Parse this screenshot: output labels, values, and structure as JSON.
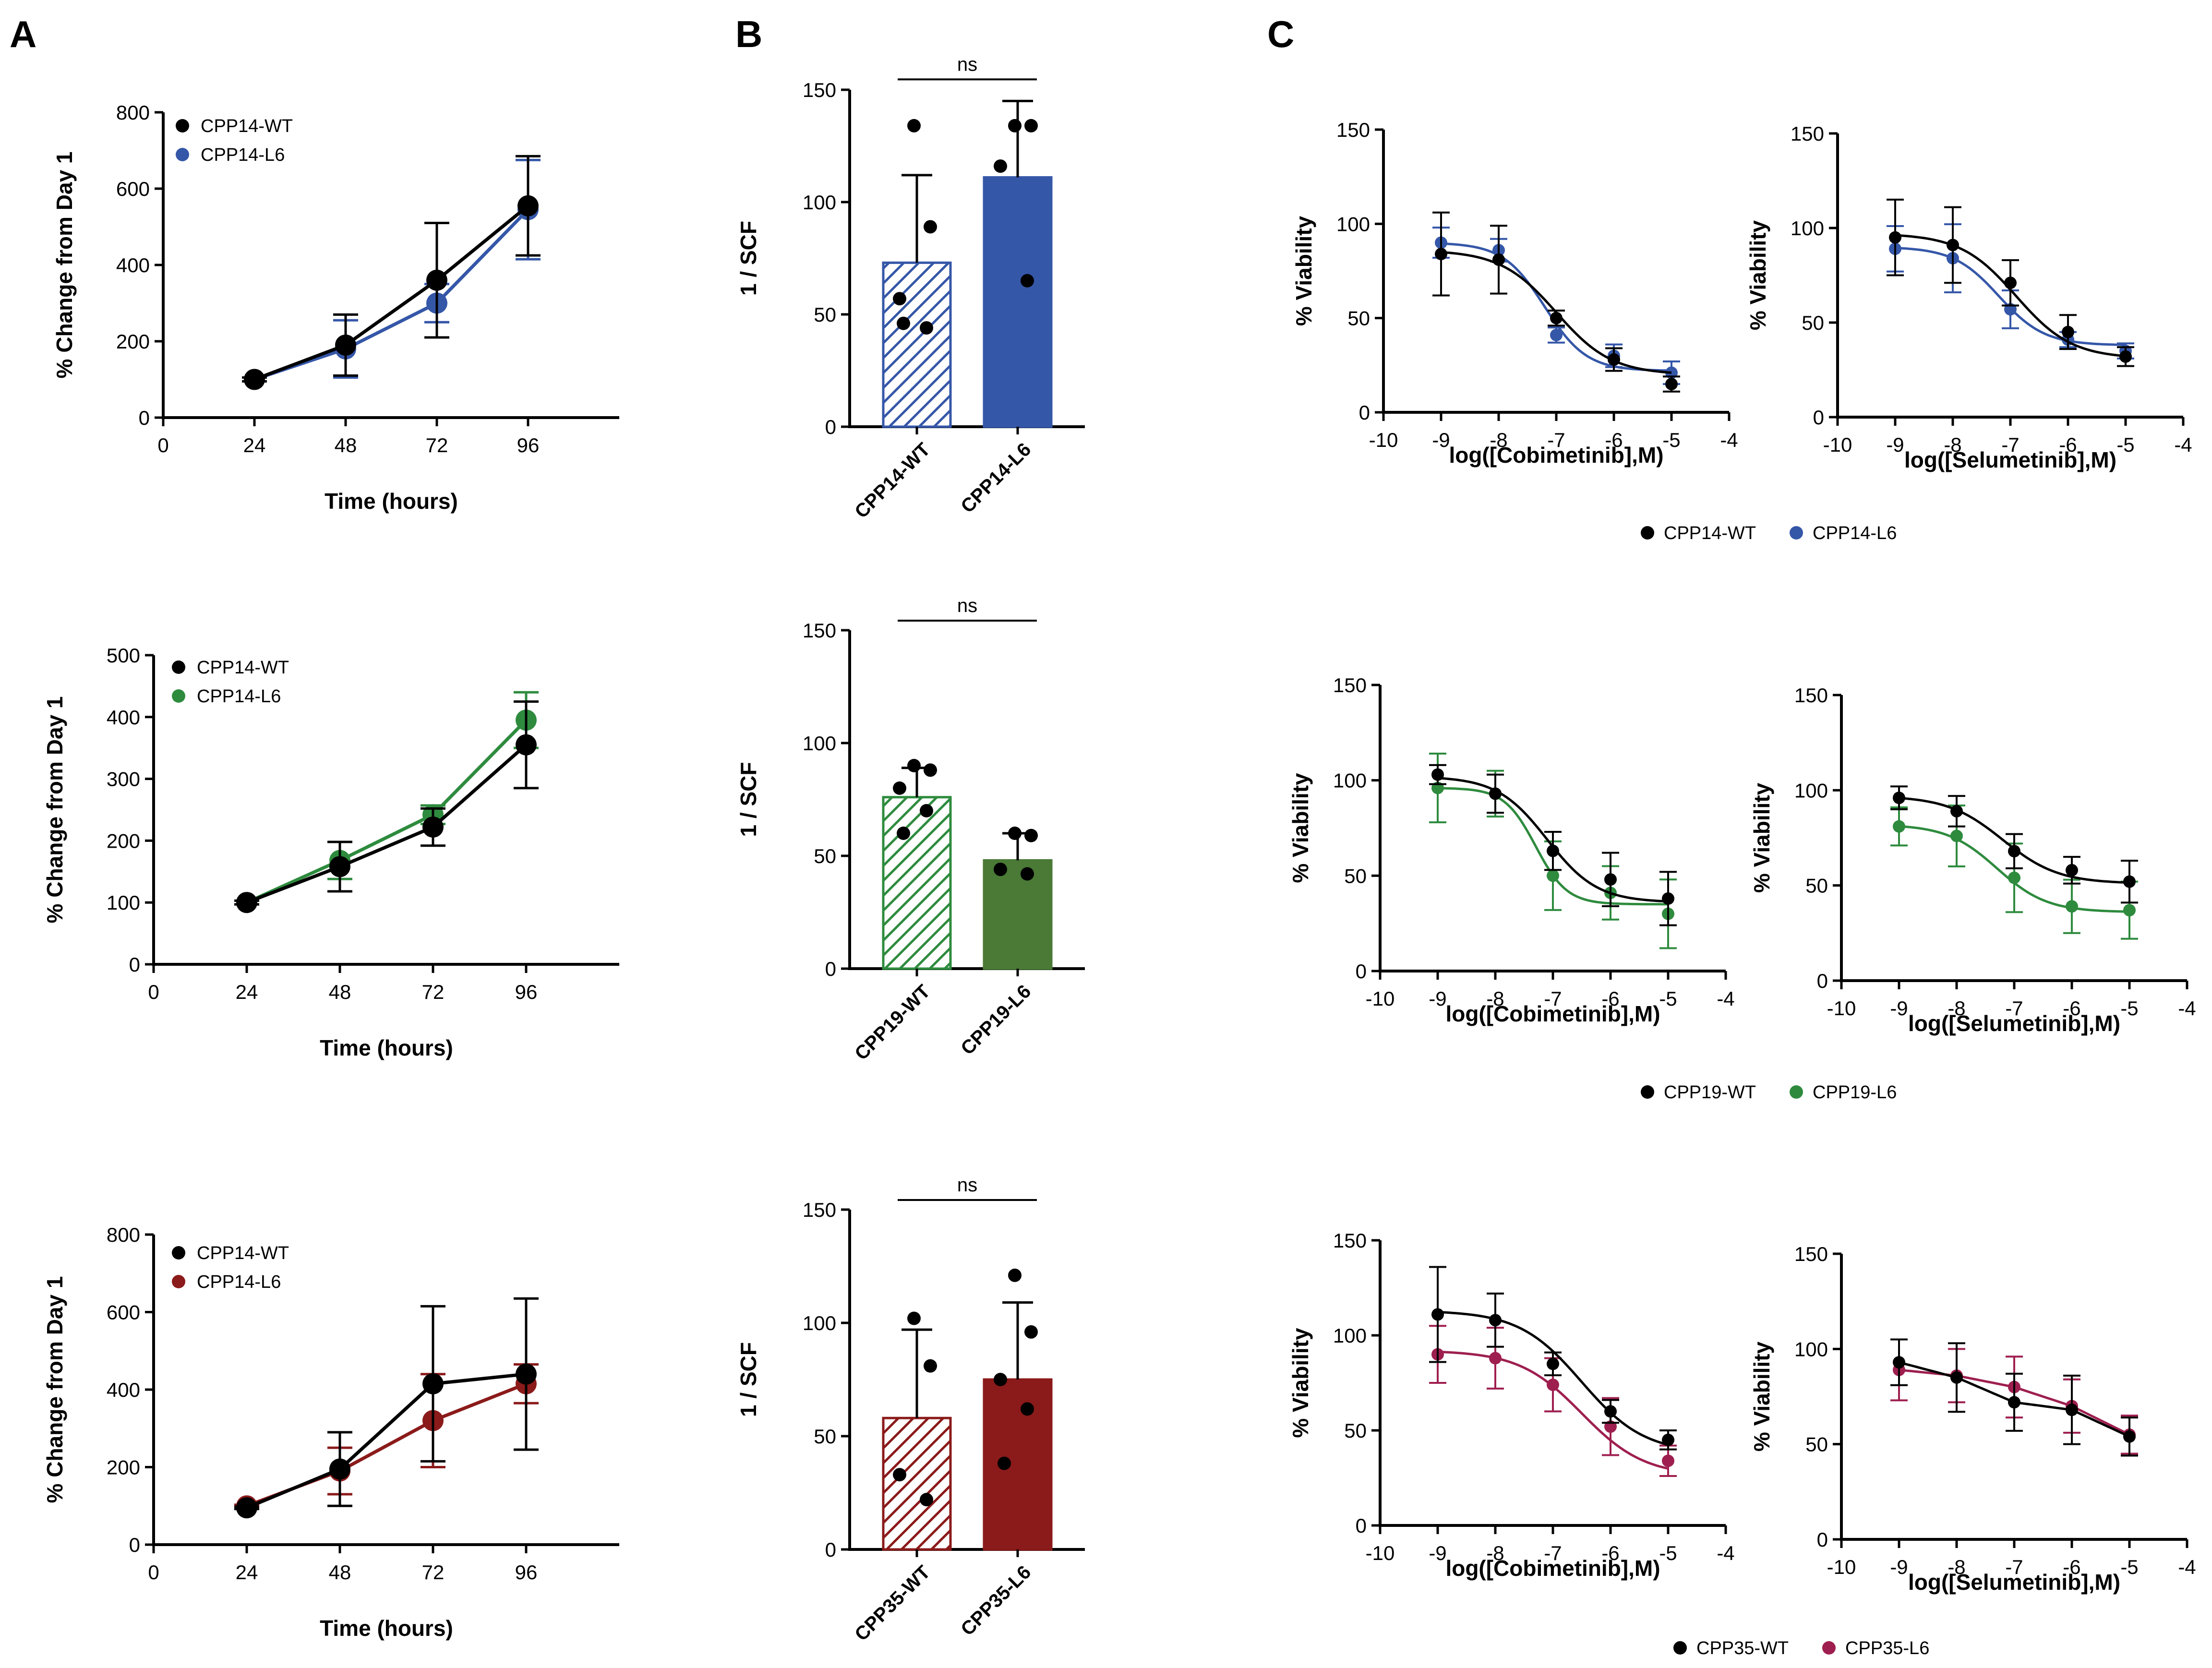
{
  "panel_labels": [
    "A",
    "B",
    "C"
  ],
  "colors": {
    "wt": "#000000",
    "blue": "#3557A8",
    "green": "#2E8B3E",
    "green_bar": "#4A7A36",
    "red": "#8B1A1A",
    "magenta": "#9E1F4F"
  },
  "chart_data": [
    {
      "id": "A1",
      "type": "line",
      "color": "blue",
      "xlabel": "Time (hours)",
      "ylabel": "% Change from Day 1",
      "xlim": [
        0,
        120
      ],
      "ylim": [
        0,
        800
      ],
      "xticks": [
        0,
        24,
        48,
        72,
        96
      ],
      "yticks": [
        0,
        200,
        400,
        600,
        800
      ],
      "legend": [
        "CPP14-WT",
        "CPP14-L6"
      ],
      "series": [
        {
          "name": "CPP14-WT",
          "x": [
            24,
            48,
            72,
            96
          ],
          "y": [
            100,
            190,
            360,
            555
          ],
          "err": [
            5,
            80,
            150,
            130
          ]
        },
        {
          "name": "CPP14-L6",
          "x": [
            24,
            48,
            72,
            96
          ],
          "y": [
            100,
            180,
            300,
            545
          ],
          "err": [
            5,
            75,
            50,
            130
          ]
        }
      ]
    },
    {
      "id": "A2",
      "type": "line",
      "color": "green",
      "xlabel": "Time (hours)",
      "ylabel": "% Change from Day 1",
      "xlim": [
        0,
        120
      ],
      "ylim": [
        0,
        500
      ],
      "xticks": [
        0,
        24,
        48,
        72,
        96
      ],
      "yticks": [
        0,
        100,
        200,
        300,
        400,
        500
      ],
      "legend": [
        "CPP14-WT",
        "CPP14-L6"
      ],
      "series": [
        {
          "name": "CPP14-WT",
          "x": [
            24,
            48,
            72,
            96
          ],
          "y": [
            100,
            158,
            222,
            355
          ],
          "err": [
            3,
            40,
            30,
            70
          ]
        },
        {
          "name": "CPP14-L6",
          "x": [
            24,
            48,
            72,
            96
          ],
          "y": [
            100,
            168,
            242,
            395
          ],
          "err": [
            3,
            30,
            15,
            45
          ]
        }
      ]
    },
    {
      "id": "A3",
      "type": "line",
      "color": "red",
      "xlabel": "Time (hours)",
      "ylabel": "% Change from Day 1",
      "xlim": [
        0,
        120
      ],
      "ylim": [
        0,
        800
      ],
      "xticks": [
        0,
        24,
        48,
        72,
        96
      ],
      "yticks": [
        0,
        200,
        400,
        600,
        800
      ],
      "legend": [
        "CPP14-WT",
        "CPP14-L6"
      ],
      "series": [
        {
          "name": "CPP14-WT",
          "x": [
            24,
            48,
            72,
            96
          ],
          "y": [
            95,
            195,
            415,
            440
          ],
          "err": [
            3,
            95,
            200,
            195
          ]
        },
        {
          "name": "CPP14-L6",
          "x": [
            24,
            48,
            72,
            96
          ],
          "y": [
            100,
            190,
            320,
            415
          ],
          "err": [
            3,
            60,
            120,
            50
          ]
        }
      ]
    },
    {
      "id": "B1",
      "type": "bar",
      "color": "blue",
      "ylabel": "1 / SCF",
      "ylim": [
        0,
        150
      ],
      "yticks": [
        0,
        50,
        100,
        150
      ],
      "significance": "ns",
      "bars": [
        {
          "name": "CPP14-WT",
          "value": 73,
          "err": 39,
          "points": [
            134,
            89,
            57,
            44,
            46
          ],
          "hatched": true
        },
        {
          "name": "CPP14-L6",
          "value": 111,
          "err": 34,
          "points": [
            134,
            134,
            116,
            65
          ],
          "hatched": false
        }
      ]
    },
    {
      "id": "B2",
      "type": "bar",
      "color": "green",
      "ylabel": "1 / SCF",
      "ylim": [
        0,
        150
      ],
      "yticks": [
        0,
        50,
        100,
        150
      ],
      "significance": "ns",
      "bars": [
        {
          "name": "CPP19-WT",
          "value": 76,
          "err": 13,
          "points": [
            90,
            88,
            80,
            70,
            60
          ],
          "hatched": true
        },
        {
          "name": "CPP19-L6",
          "value": 48,
          "err": 12,
          "points": [
            60,
            59,
            44,
            42
          ],
          "hatched": false
        }
      ]
    },
    {
      "id": "B3",
      "type": "bar",
      "color": "red",
      "ylabel": "1 / SCF",
      "ylim": [
        0,
        150
      ],
      "yticks": [
        0,
        50,
        100,
        150
      ],
      "significance": "ns",
      "bars": [
        {
          "name": "CPP35-WT",
          "value": 58,
          "err": 39,
          "points": [
            102,
            81,
            33,
            22
          ],
          "hatched": true
        },
        {
          "name": "CPP35-L6",
          "value": 75,
          "err": 34,
          "points": [
            121,
            96,
            75,
            62,
            38
          ],
          "hatched": false
        }
      ]
    },
    {
      "id": "C1a",
      "type": "line",
      "color": "blue",
      "xlabel": "log([Cobimetinib],M)",
      "ylabel": "% Viability",
      "xlim": [
        -10,
        -4
      ],
      "ylim": [
        0,
        150
      ],
      "xticks": [
        -10,
        -9,
        -8,
        -7,
        -6,
        -5,
        -4
      ],
      "yticks": [
        0,
        50,
        100,
        150
      ],
      "series": [
        {
          "name": "CPP14-WT",
          "x": [
            -9,
            -8,
            -7,
            -6,
            -5
          ],
          "y": [
            84,
            81,
            50,
            28,
            15
          ],
          "err": [
            22,
            18,
            4,
            6,
            4
          ],
          "fit": {
            "top": 86,
            "bottom": 20,
            "ic50": -7.0,
            "hill": 0.9
          }
        },
        {
          "name": "CPP14-L6",
          "x": [
            -9,
            -8,
            -7,
            -6,
            -5
          ],
          "y": [
            90,
            86,
            41,
            30,
            21
          ],
          "err": [
            8,
            6,
            4,
            6,
            6
          ],
          "fit": {
            "top": 90,
            "bottom": 22,
            "ic50": -7.2,
            "hill": 1.2
          }
        }
      ]
    },
    {
      "id": "C1b",
      "type": "line",
      "color": "blue",
      "xlabel": "log([Selumetinib],M)",
      "ylabel": "% Viability",
      "xlim": [
        -10,
        -4
      ],
      "ylim": [
        0,
        150
      ],
      "xticks": [
        -10,
        -9,
        -8,
        -7,
        -6,
        -5,
        -4
      ],
      "yticks": [
        0,
        50,
        100,
        150
      ],
      "series": [
        {
          "name": "CPP14-WT",
          "x": [
            -9,
            -8,
            -7,
            -6,
            -5
          ],
          "y": [
            95,
            91,
            71,
            45,
            32
          ],
          "err": [
            20,
            20,
            12,
            9,
            5
          ],
          "fit": {
            "top": 97,
            "bottom": 31,
            "ic50": -6.9,
            "hill": 0.9
          }
        },
        {
          "name": "CPP14-L6",
          "x": [
            -9,
            -8,
            -7,
            -6,
            -5
          ],
          "y": [
            89,
            84,
            57,
            41,
            35
          ],
          "err": [
            12,
            18,
            10,
            4,
            4
          ],
          "fit": {
            "top": 90,
            "bottom": 38,
            "ic50": -7.2,
            "hill": 1.1
          }
        }
      ]
    },
    {
      "id": "C2a",
      "type": "line",
      "color": "green",
      "xlabel": "log([Cobimetinib],M)",
      "ylabel": "% Viability",
      "xlim": [
        -10,
        -4
      ],
      "ylim": [
        0,
        150
      ],
      "xticks": [
        -10,
        -9,
        -8,
        -7,
        -6,
        -5,
        -4
      ],
      "yticks": [
        0,
        50,
        100,
        150
      ],
      "series": [
        {
          "name": "CPP19-WT",
          "x": [
            -9,
            -8,
            -7,
            -6,
            -5
          ],
          "y": [
            103,
            93,
            63,
            48,
            38
          ],
          "err": [
            5,
            10,
            10,
            14,
            14
          ],
          "fit": {
            "top": 102,
            "bottom": 36,
            "ic50": -7.1,
            "hill": 1.0
          }
        },
        {
          "name": "CPP19-L6",
          "x": [
            -9,
            -8,
            -7,
            -6,
            -5
          ],
          "y": [
            96,
            93,
            50,
            41,
            30
          ],
          "err": [
            18,
            12,
            18,
            14,
            18
          ],
          "fit": {
            "top": 96,
            "bottom": 35,
            "ic50": -7.3,
            "hill": 1.6
          }
        }
      ]
    },
    {
      "id": "C2b",
      "type": "line",
      "color": "green",
      "xlabel": "log([Selumetinib],M)",
      "ylabel": "% Viability",
      "xlim": [
        -10,
        -4
      ],
      "ylim": [
        0,
        150
      ],
      "xticks": [
        -10,
        -9,
        -8,
        -7,
        -6,
        -5,
        -4
      ],
      "yticks": [
        0,
        50,
        100,
        150
      ],
      "series": [
        {
          "name": "CPP19-WT",
          "x": [
            -9,
            -8,
            -7,
            -6,
            -5
          ],
          "y": [
            96,
            89,
            68,
            58,
            52
          ],
          "err": [
            6,
            8,
            9,
            7,
            11
          ],
          "fit": {
            "top": 97,
            "bottom": 51,
            "ic50": -7.2,
            "hill": 0.9
          }
        },
        {
          "name": "CPP19-L6",
          "x": [
            -9,
            -8,
            -7,
            -6,
            -5
          ],
          "y": [
            81,
            76,
            54,
            39,
            37
          ],
          "err": [
            10,
            16,
            18,
            14,
            15
          ],
          "fit": {
            "top": 82,
            "bottom": 36,
            "ic50": -7.3,
            "hill": 1.0
          }
        }
      ]
    },
    {
      "id": "C3a",
      "type": "line",
      "color": "magenta",
      "xlabel": "log([Cobimetinib],M)",
      "ylabel": "% Viability",
      "xlim": [
        -10,
        -4
      ],
      "ylim": [
        0,
        150
      ],
      "xticks": [
        -10,
        -9,
        -8,
        -7,
        -6,
        -5,
        -4
      ],
      "yticks": [
        0,
        50,
        100,
        150
      ],
      "series": [
        {
          "name": "CPP35-WT",
          "x": [
            -9,
            -8,
            -7,
            -6,
            -5
          ],
          "y": [
            111,
            108,
            85,
            60,
            45
          ],
          "err": [
            25,
            14,
            6,
            6,
            5
          ],
          "fit": {
            "top": 113,
            "bottom": 38,
            "ic50": -6.5,
            "hill": 0.8
          }
        },
        {
          "name": "CPP35-L6",
          "x": [
            -9,
            -8,
            -7,
            -6,
            -5
          ],
          "y": [
            90,
            88,
            74,
            52,
            34
          ],
          "err": [
            15,
            16,
            14,
            15,
            8
          ],
          "fit": {
            "top": 92,
            "bottom": 26,
            "ic50": -6.5,
            "hill": 0.8
          }
        }
      ]
    },
    {
      "id": "C3b",
      "type": "line",
      "color": "magenta",
      "xlabel": "log([Selumetinib],M)",
      "ylabel": "% Viability",
      "xlim": [
        -10,
        -4
      ],
      "ylim": [
        0,
        150
      ],
      "xticks": [
        -10,
        -9,
        -8,
        -7,
        -6,
        -5,
        -4
      ],
      "yticks": [
        0,
        50,
        100,
        150
      ],
      "series": [
        {
          "name": "CPP35-WT",
          "x": [
            -9,
            -8,
            -7,
            -6,
            -5
          ],
          "y": [
            93,
            85,
            72,
            68,
            54
          ],
          "err": [
            12,
            18,
            15,
            18,
            10
          ],
          "fit": "linear"
        },
        {
          "name": "CPP35-L6",
          "x": [
            -9,
            -8,
            -7,
            -6,
            -5
          ],
          "y": [
            89,
            86,
            80,
            70,
            55
          ],
          "err": [
            16,
            14,
            16,
            14,
            10
          ],
          "fit": "linear"
        }
      ]
    }
  ],
  "c_legends": [
    {
      "items": [
        "CPP14-WT",
        "CPP14-L6"
      ],
      "color": "blue"
    },
    {
      "items": [
        "CPP19-WT",
        "CPP19-L6"
      ],
      "color": "green"
    },
    {
      "items": [
        "CPP35-WT",
        "CPP35-L6"
      ],
      "color": "magenta"
    }
  ]
}
